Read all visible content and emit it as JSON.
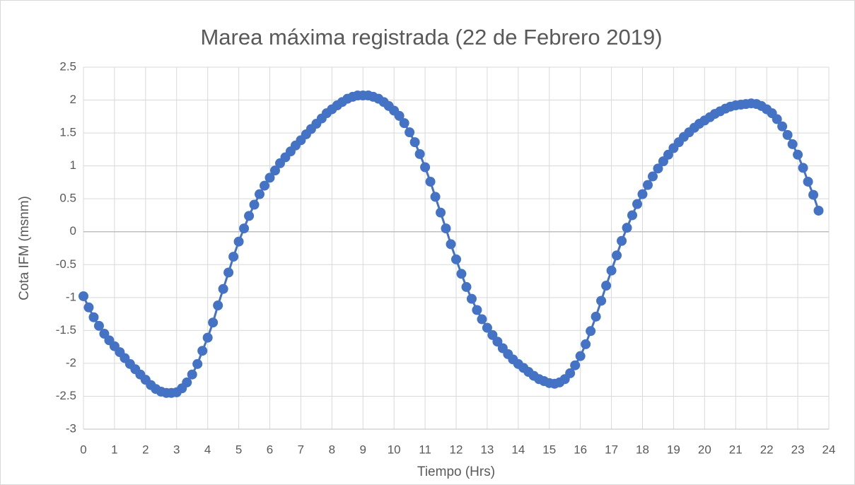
{
  "chart_data": {
    "type": "line",
    "title": "Marea máxima registrada (22 de Febrero 2019)",
    "x_label": "Tiempo (Hrs)",
    "y_label": "Cota IFM (msnm)",
    "color": "#4472c4",
    "markers": true,
    "grid": true,
    "xlim": [
      0,
      24
    ],
    "xticks": [
      0,
      1,
      2,
      3,
      4,
      5,
      6,
      7,
      8,
      9,
      10,
      11,
      12,
      13,
      14,
      15,
      16,
      17,
      18,
      19,
      20,
      21,
      22,
      23,
      24
    ],
    "ylim": [
      -3,
      2.5
    ],
    "yticks": [
      -3,
      -2.5,
      -2,
      -1.5,
      -1,
      -0.5,
      0,
      0.5,
      1,
      1.5,
      2,
      2.5
    ],
    "x": [
      0,
      0.17,
      0.33,
      0.5,
      0.67,
      0.83,
      1,
      1.17,
      1.33,
      1.5,
      1.67,
      1.83,
      2,
      2.17,
      2.33,
      2.5,
      2.67,
      2.83,
      3,
      3.17,
      3.33,
      3.5,
      3.67,
      3.83,
      4,
      4.17,
      4.33,
      4.5,
      4.67,
      4.83,
      5,
      5.17,
      5.33,
      5.5,
      5.67,
      5.83,
      6,
      6.17,
      6.33,
      6.5,
      6.67,
      6.83,
      7,
      7.17,
      7.33,
      7.5,
      7.67,
      7.83,
      8,
      8.17,
      8.33,
      8.5,
      8.67,
      8.83,
      9,
      9.17,
      9.33,
      9.5,
      9.67,
      9.83,
      10,
      10.17,
      10.33,
      10.5,
      10.67,
      10.83,
      11,
      11.17,
      11.33,
      11.5,
      11.67,
      11.83,
      12,
      12.17,
      12.33,
      12.5,
      12.67,
      12.83,
      13,
      13.17,
      13.33,
      13.5,
      13.67,
      13.83,
      14,
      14.17,
      14.33,
      14.5,
      14.67,
      14.83,
      15,
      15.17,
      15.33,
      15.5,
      15.67,
      15.83,
      16,
      16.17,
      16.33,
      16.5,
      16.67,
      16.83,
      17,
      17.17,
      17.33,
      17.5,
      17.67,
      17.83,
      18,
      18.17,
      18.33,
      18.5,
      18.67,
      18.83,
      19,
      19.17,
      19.33,
      19.5,
      19.67,
      19.83,
      20,
      20.17,
      20.33,
      20.5,
      20.67,
      20.83,
      21,
      21.17,
      21.33,
      21.5,
      21.67,
      21.83,
      22,
      22.17,
      22.33,
      22.5,
      22.67,
      22.83,
      23,
      23.17,
      23.33,
      23.5,
      23.67
    ],
    "values": [
      -0.98,
      -1.15,
      -1.3,
      -1.43,
      -1.55,
      -1.65,
      -1.74,
      -1.83,
      -1.92,
      -2.01,
      -2.09,
      -2.17,
      -2.25,
      -2.33,
      -2.39,
      -2.43,
      -2.45,
      -2.45,
      -2.44,
      -2.38,
      -2.29,
      -2.17,
      -2.01,
      -1.81,
      -1.61,
      -1.38,
      -1.12,
      -0.87,
      -0.62,
      -0.38,
      -0.15,
      0.05,
      0.24,
      0.41,
      0.57,
      0.7,
      0.82,
      0.93,
      1.04,
      1.13,
      1.22,
      1.31,
      1.39,
      1.48,
      1.56,
      1.64,
      1.72,
      1.8,
      1.86,
      1.92,
      1.97,
      2.02,
      2.05,
      2.07,
      2.07,
      2.07,
      2.05,
      2.02,
      1.97,
      1.91,
      1.84,
      1.76,
      1.65,
      1.51,
      1.36,
      1.18,
      0.98,
      0.76,
      0.53,
      0.29,
      0.05,
      -0.19,
      -0.42,
      -0.64,
      -0.84,
      -1.02,
      -1.19,
      -1.33,
      -1.46,
      -1.57,
      -1.67,
      -1.77,
      -1.86,
      -1.94,
      -2.01,
      -2.07,
      -2.13,
      -2.19,
      -2.24,
      -2.27,
      -2.3,
      -2.31,
      -2.29,
      -2.24,
      -2.15,
      -2.03,
      -1.89,
      -1.71,
      -1.51,
      -1.29,
      -1.05,
      -0.82,
      -0.59,
      -0.36,
      -0.14,
      0.06,
      0.25,
      0.42,
      0.57,
      0.71,
      0.84,
      0.96,
      1.07,
      1.17,
      1.27,
      1.36,
      1.44,
      1.51,
      1.58,
      1.64,
      1.69,
      1.74,
      1.79,
      1.83,
      1.87,
      1.9,
      1.92,
      1.93,
      1.94,
      1.95,
      1.94,
      1.91,
      1.86,
      1.8,
      1.71,
      1.6,
      1.47,
      1.33,
      1.17,
      0.97,
      0.76,
      0.56,
      0.32
    ]
  }
}
